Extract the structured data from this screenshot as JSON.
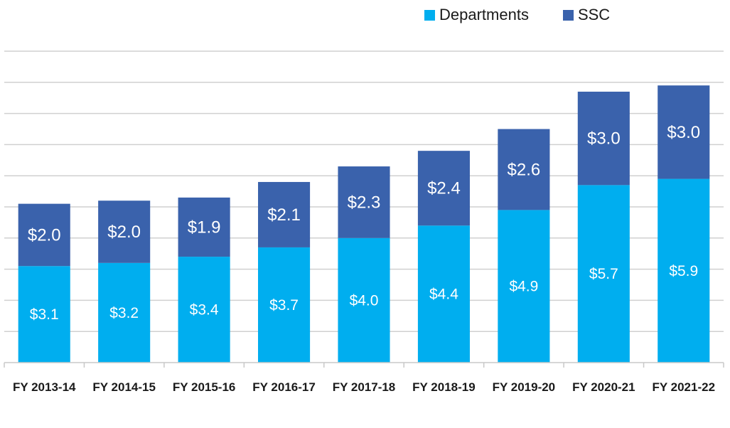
{
  "chart_data": {
    "type": "bar",
    "stacked": true,
    "title": "",
    "xlabel": "",
    "ylabel": "",
    "ylim": [
      0,
      10
    ],
    "grid": true,
    "legend_position": "top-right",
    "categories": [
      "FY 2013-14",
      "FY 2014-15",
      "FY 2015-16",
      "FY 2016-17",
      "FY 2017-18",
      "FY 2018-19",
      "FY 2019-20",
      "FY 2020-21",
      "FY 2021-22"
    ],
    "series": [
      {
        "name": "Departments",
        "color": "#00AEEF",
        "values": [
          3.1,
          3.2,
          3.4,
          3.7,
          4.0,
          4.4,
          4.9,
          5.7,
          5.9
        ],
        "labels": [
          "$3.1",
          "$3.2",
          "$3.4",
          "$3.7",
          "$4.0",
          "$4.4",
          "$4.9",
          "$5.7",
          "$5.9"
        ]
      },
      {
        "name": "SSC",
        "color": "#3A62AC",
        "values": [
          2.0,
          2.0,
          1.9,
          2.1,
          2.3,
          2.4,
          2.6,
          3.0,
          3.0
        ],
        "labels": [
          "$2.0",
          "$2.0",
          "$1.9",
          "$2.1",
          "$2.3",
          "$2.4",
          "$2.6",
          "$3.0",
          "$3.0"
        ]
      }
    ]
  }
}
